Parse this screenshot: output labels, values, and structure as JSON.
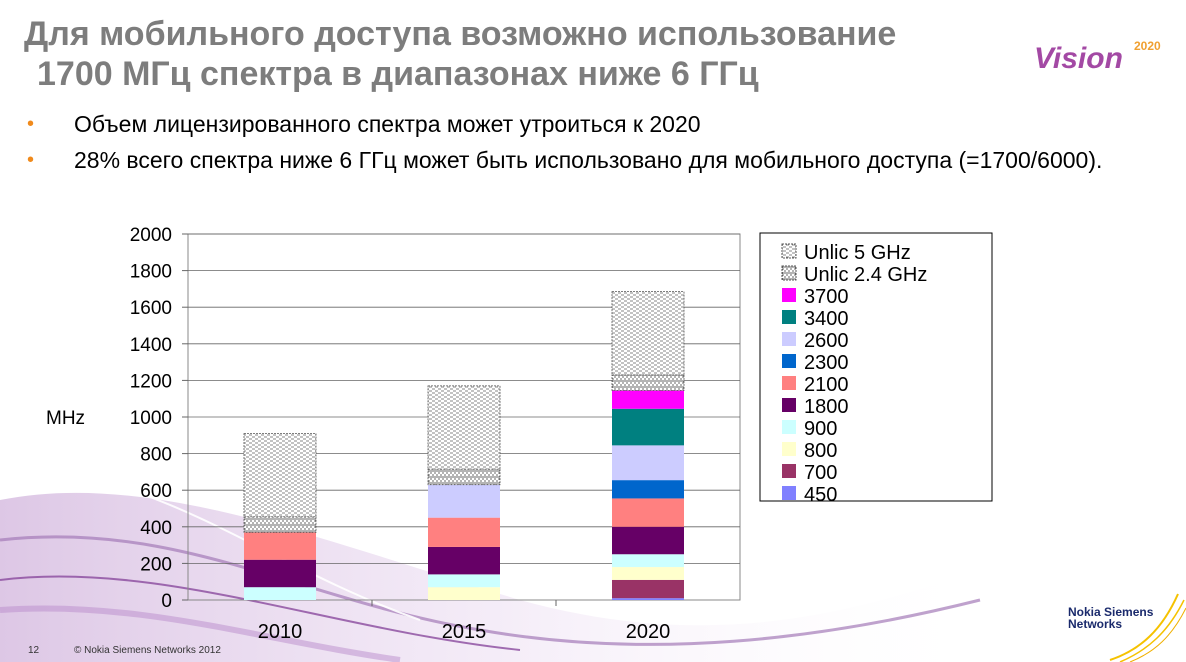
{
  "slide": {
    "title_line1": "Для мобильного доступа возможно использование",
    "title_line2": "1700 МГц спектра в диапазонах ниже 6 ГГц",
    "bullets": [
      "Объем лицензированного спектра может утроиться к 2020",
      "28% всего спектра ниже 6 ГГц может быть использовано для мобильного доступа (=1700/6000)."
    ],
    "logo_text": "Vision",
    "logo_year": "2020",
    "page_number": "12",
    "copyright": "© Nokia Siemens Networks 2012",
    "brand_line1": "Nokia Siemens",
    "brand_line2": "Networks",
    "colors": {
      "title": "#7d7d7d",
      "bullet": "#f08a1c",
      "brand": "#1a2a6c",
      "logo": "#a349a4"
    }
  },
  "chart_data": {
    "type": "bar",
    "stacked": true,
    "categories": [
      "2010",
      "2015",
      "2020"
    ],
    "ylabel": "MHz",
    "ylim": [
      0,
      2000
    ],
    "yticks": [
      0,
      200,
      400,
      600,
      800,
      1000,
      1200,
      1400,
      1600,
      1800,
      2000
    ],
    "grid": true,
    "legend_position": "right",
    "series": [
      {
        "name": "450",
        "color": "#8080ff",
        "values": [
          0,
          0,
          10
        ]
      },
      {
        "name": "700",
        "color": "#993366",
        "values": [
          0,
          0,
          100
        ]
      },
      {
        "name": "800",
        "color": "#ffffcc",
        "values": [
          0,
          70,
          70
        ]
      },
      {
        "name": "900",
        "color": "#ccffff",
        "values": [
          70,
          70,
          70
        ]
      },
      {
        "name": "1800",
        "color": "#660066",
        "values": [
          150,
          150,
          150
        ]
      },
      {
        "name": "2100",
        "color": "#ff8080",
        "values": [
          150,
          160,
          155
        ]
      },
      {
        "name": "2300",
        "color": "#0066cc",
        "values": [
          0,
          0,
          100
        ]
      },
      {
        "name": "2600",
        "color": "#ccccff",
        "values": [
          0,
          180,
          190
        ]
      },
      {
        "name": "3400",
        "color": "#008080",
        "values": [
          0,
          0,
          200
        ]
      },
      {
        "name": "3700",
        "color": "#ff00ff",
        "values": [
          0,
          0,
          100
        ]
      },
      {
        "name": "Unlic 2.4 GHz",
        "color": "#ffffff",
        "pattern": "vertical",
        "values": [
          85,
          85,
          85
        ]
      },
      {
        "name": "Unlic 5 GHz",
        "color": "#ffffff",
        "pattern": "horizontal",
        "values": [
          455,
          455,
          455
        ]
      }
    ]
  }
}
